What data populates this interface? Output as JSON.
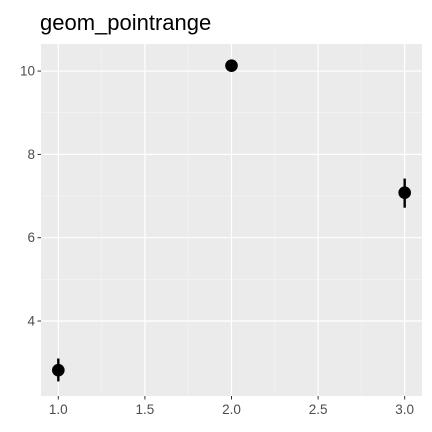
{
  "chart_data": {
    "type": "scatter",
    "title": "geom_pointrange",
    "xlabel": "",
    "ylabel": "",
    "x_ticks": [
      1.0,
      1.5,
      2.0,
      2.5,
      3.0
    ],
    "x_tick_labels": [
      "1.0",
      "1.5",
      "2.0",
      "2.5",
      "3.0"
    ],
    "y_ticks": [
      4,
      6,
      8,
      10
    ],
    "y_tick_labels": [
      "4",
      "6",
      "8",
      "10"
    ],
    "xlim": [
      0.9,
      3.1
    ],
    "ylim": [
      2.2,
      10.65
    ],
    "grid": true,
    "colors": {
      "panel": "#ebebeb",
      "grid_major": "#ffffff",
      "grid_minor": "#f5f5f5",
      "point": "#000000",
      "tick": "#333333"
    },
    "points": [
      {
        "x": 1,
        "y": 2.82,
        "ymin": 2.55,
        "ymax": 3.1
      },
      {
        "x": 2,
        "y": 10.13,
        "ymin": 10.05,
        "ymax": 10.2
      },
      {
        "x": 3,
        "y": 7.08,
        "ymin": 6.72,
        "ymax": 7.42
      }
    ]
  }
}
